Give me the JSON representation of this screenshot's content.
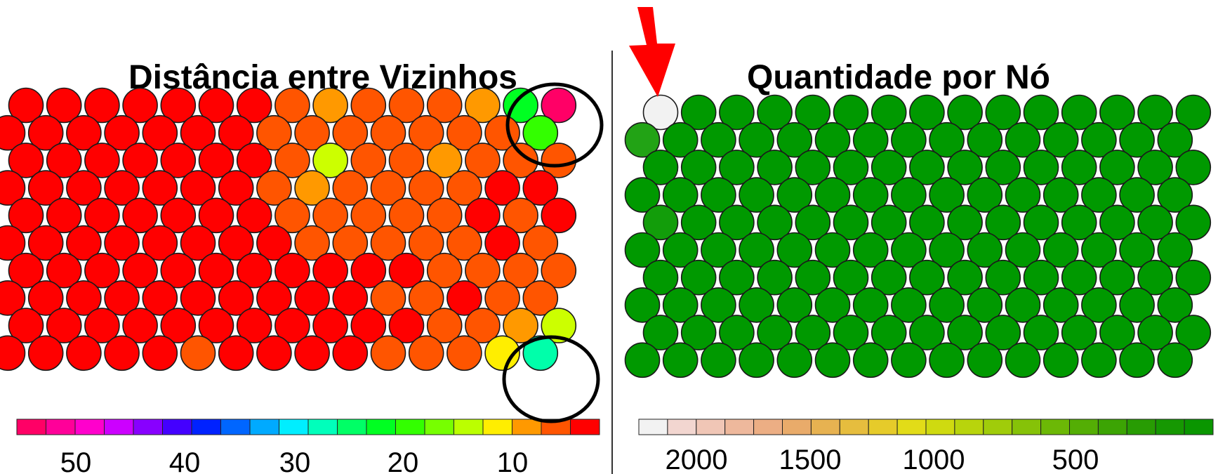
{
  "chart_data": [
    {
      "type": "heatmap",
      "grid": "hexagonal",
      "rows": 10,
      "cols": 15,
      "title": "Distância entre Vizinhos",
      "colorbar_ticks": [
        "50",
        "40",
        "30",
        "20",
        "10"
      ],
      "colorbar_colors": [
        "#ff0066",
        "#ff0099",
        "#ff00cc",
        "#cc00ff",
        "#8800ff",
        "#4400ff",
        "#0022ff",
        "#0066ff",
        "#00aaff",
        "#00eeff",
        "#00ffbb",
        "#00ff66",
        "#00ff22",
        "#33ff00",
        "#77ff00",
        "#bbff00",
        "#ffee00",
        "#ff9900",
        "#ff5500",
        "#ff0000"
      ],
      "highlighted_regions": [
        "top-right",
        "bottom-right"
      ],
      "cell_colors": [
        [
          "#ff0000",
          "#ff0000",
          "#ff0000",
          "#ff0000",
          "#ff0000",
          "#ff0000",
          "#ff0000",
          "#ff5500",
          "#ff9900",
          "#ff5500",
          "#ff5500",
          "#ff5500",
          "#ff9900",
          "#00ff22",
          "#ff0066"
        ],
        [
          "#ff0000",
          "#ff0000",
          "#ff0000",
          "#ff0000",
          "#ff0000",
          "#ff0000",
          "#ff0000",
          "#ff5500",
          "#ff5500",
          "#ff5500",
          "#ff5500",
          "#ff5500",
          "#ff5500",
          "#ff5500",
          "#33ff00"
        ],
        [
          "#ff0000",
          "#ff0000",
          "#ff0000",
          "#ff0000",
          "#ff0000",
          "#ff0000",
          "#ff0000",
          "#ff5500",
          "#ccff00",
          "#ff5500",
          "#ff5500",
          "#ff9900",
          "#ff5500",
          "#ff5500",
          "#ff5500"
        ],
        [
          "#ff0000",
          "#ff0000",
          "#ff0000",
          "#ff0000",
          "#ff0000",
          "#ff0000",
          "#ff0000",
          "#ff5500",
          "#ff9900",
          "#ff5500",
          "#ff5500",
          "#ff5500",
          "#ff5500",
          "#ff0000",
          "#ff0000"
        ],
        [
          "#ff0000",
          "#ff0000",
          "#ff0000",
          "#ff0000",
          "#ff0000",
          "#ff0000",
          "#ff0000",
          "#ff5500",
          "#ff5500",
          "#ff5500",
          "#ff5500",
          "#ff5500",
          "#ff0000",
          "#ff5500",
          "#ff0000"
        ],
        [
          "#ff0000",
          "#ff0000",
          "#ff0000",
          "#ff0000",
          "#ff0000",
          "#ff0000",
          "#ff0000",
          "#ff0000",
          "#ff5500",
          "#ff5500",
          "#ff5500",
          "#ff5500",
          "#ff5500",
          "#ff0000",
          "#ff5500"
        ],
        [
          "#ff0000",
          "#ff0000",
          "#ff0000",
          "#ff0000",
          "#ff0000",
          "#ff0000",
          "#ff0000",
          "#ff0000",
          "#ff0000",
          "#ff0000",
          "#ff0000",
          "#ff5500",
          "#ff5500",
          "#ff5500",
          "#ff5500"
        ],
        [
          "#ff0000",
          "#ff0000",
          "#ff0000",
          "#ff0000",
          "#ff0000",
          "#ff0000",
          "#ff0000",
          "#ff0000",
          "#ff0000",
          "#ff0000",
          "#ff5500",
          "#ff5500",
          "#ff0000",
          "#ff5500",
          "#ff5500"
        ],
        [
          "#ff0000",
          "#ff0000",
          "#ff0000",
          "#ff0000",
          "#ff0000",
          "#ff0000",
          "#ff0000",
          "#ff0000",
          "#ff0000",
          "#ff0000",
          "#ff0000",
          "#ff5500",
          "#ff5500",
          "#ff9900",
          "#ccff00"
        ],
        [
          "#ff0000",
          "#ff0000",
          "#ff0000",
          "#ff0000",
          "#ff0000",
          "#ff5500",
          "#ff0000",
          "#ff0000",
          "#ff0000",
          "#ff0000",
          "#ff5500",
          "#ff5500",
          "#ff5500",
          "#ffee00",
          "#00ffaa"
        ]
      ]
    },
    {
      "type": "heatmap",
      "grid": "hexagonal",
      "rows": 10,
      "cols": 15,
      "title": "Quantidade por Nó",
      "colorbar_ticks": [
        "2000",
        "1500",
        "1000",
        "500"
      ],
      "colorbar_colors": [
        "#f2f2f2",
        "#f2d6d0",
        "#f0c6b6",
        "#eeb89c",
        "#ecae84",
        "#e9ab6a",
        "#e7b251",
        "#e6bd3e",
        "#e6cb2a",
        "#e2dc18",
        "#cfda10",
        "#b8d40c",
        "#a0cc0a",
        "#86c208",
        "#6cb806",
        "#54ae05",
        "#3ca404",
        "#289c03",
        "#169802",
        "#0a9600"
      ],
      "pointer": "arrow pointing to top-left node",
      "cell_colors": [
        [
          "#f2f2f2",
          "#009900",
          "#009900",
          "#009900",
          "#009900",
          "#009900",
          "#009900",
          "#009900",
          "#009900",
          "#009900",
          "#009900",
          "#009900",
          "#009900",
          "#009900",
          "#009900"
        ],
        [
          "#22a315",
          "#009900",
          "#009900",
          "#009900",
          "#009900",
          "#009900",
          "#009900",
          "#009900",
          "#009900",
          "#009900",
          "#009900",
          "#009900",
          "#009900",
          "#009900",
          "#009900"
        ],
        [
          "#009900",
          "#009900",
          "#009900",
          "#009900",
          "#009900",
          "#009900",
          "#009900",
          "#009900",
          "#009900",
          "#009900",
          "#009900",
          "#009900",
          "#009900",
          "#009900",
          "#009900"
        ],
        [
          "#009900",
          "#009900",
          "#009900",
          "#009900",
          "#009900",
          "#009900",
          "#009900",
          "#009900",
          "#009900",
          "#009900",
          "#009900",
          "#009900",
          "#009900",
          "#009900",
          "#009900"
        ],
        [
          "#129d0a",
          "#009900",
          "#009900",
          "#009900",
          "#009900",
          "#009900",
          "#009900",
          "#009900",
          "#009900",
          "#009900",
          "#009900",
          "#009900",
          "#009900",
          "#009900",
          "#009900"
        ],
        [
          "#009900",
          "#009900",
          "#009900",
          "#009900",
          "#009900",
          "#009900",
          "#009900",
          "#009900",
          "#009900",
          "#009900",
          "#009900",
          "#009900",
          "#009900",
          "#009900",
          "#009900"
        ],
        [
          "#009900",
          "#009900",
          "#009900",
          "#009900",
          "#009900",
          "#009900",
          "#009900",
          "#009900",
          "#009900",
          "#009900",
          "#009900",
          "#009900",
          "#009900",
          "#009900",
          "#009900"
        ],
        [
          "#009900",
          "#009900",
          "#009900",
          "#009900",
          "#009900",
          "#009900",
          "#009900",
          "#009900",
          "#009900",
          "#009900",
          "#009900",
          "#009900",
          "#009900",
          "#009900",
          "#009900"
        ],
        [
          "#009900",
          "#009900",
          "#009900",
          "#009900",
          "#009900",
          "#009900",
          "#009900",
          "#009900",
          "#009900",
          "#009900",
          "#009900",
          "#009900",
          "#009900",
          "#009900",
          "#009900"
        ],
        [
          "#009900",
          "#009900",
          "#009900",
          "#009900",
          "#009900",
          "#009900",
          "#009900",
          "#009900",
          "#009900",
          "#009900",
          "#009900",
          "#009900",
          "#009900",
          "#009900",
          "#009900"
        ]
      ]
    }
  ]
}
